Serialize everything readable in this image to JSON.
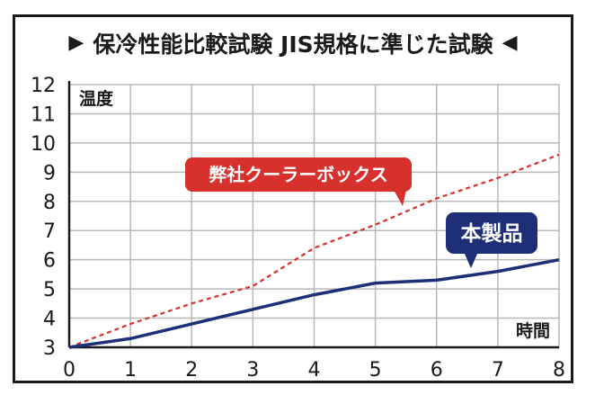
{
  "chart_data": {
    "type": "line",
    "title": "保冷性能比較試験 JIS規格に準じた試験",
    "title_left_marker": "▶",
    "title_right_marker": "◀",
    "xlabel": "時間",
    "ylabel": "温度",
    "xlim": [
      0,
      8
    ],
    "ylim": [
      3,
      12
    ],
    "x_ticks": [
      "0",
      "1",
      "2",
      "3",
      "4",
      "5",
      "6",
      "7",
      "8"
    ],
    "y_ticks": [
      "3",
      "4",
      "5",
      "6",
      "7",
      "8",
      "9",
      "10",
      "11",
      "12"
    ],
    "grid": true,
    "series": [
      {
        "name": "弊社クーラーボックス",
        "color": "#d7312d",
        "style": "dashed",
        "x": [
          0,
          1,
          2,
          3,
          4,
          5,
          6,
          7,
          8
        ],
        "y": [
          3.0,
          3.8,
          4.5,
          5.1,
          6.4,
          7.2,
          8.1,
          8.8,
          9.6
        ]
      },
      {
        "name": "本製品",
        "color": "#1e2f78",
        "style": "solid",
        "x": [
          0,
          1,
          2,
          3,
          4,
          5,
          6,
          7,
          8
        ],
        "y": [
          3.0,
          3.3,
          3.8,
          4.3,
          4.8,
          5.2,
          5.3,
          5.6,
          6.0
        ]
      }
    ],
    "callouts": [
      {
        "text": "弊社クーラーボックス",
        "color": "#d7312d"
      },
      {
        "text": "本製品",
        "color": "#1e2f78"
      }
    ]
  }
}
